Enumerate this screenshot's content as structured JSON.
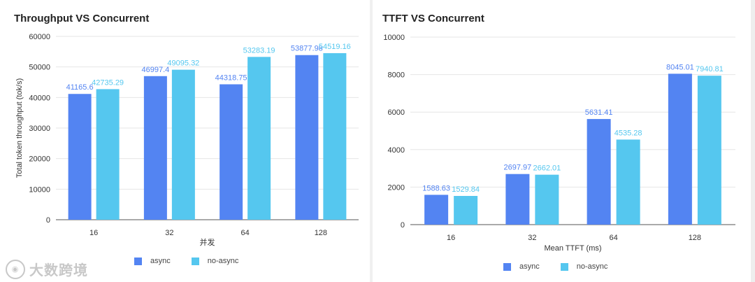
{
  "colors": {
    "async": "#5384f2",
    "no_async": "#55c7ef",
    "async_label": "#5384f2",
    "no_async_label": "#55c7ef"
  },
  "watermark": {
    "icon": "bigdata-logo-icon",
    "text": "大数跨境"
  },
  "chart_data": [
    {
      "type": "bar",
      "title": "Throughput VS Concurrent",
      "xlabel": "并发",
      "ylabel": "Total token throughput (tok/s)",
      "categories": [
        "16",
        "32",
        "64",
        "128"
      ],
      "ylim": [
        0,
        60000
      ],
      "yticks": [
        "0",
        "10000",
        "20000",
        "30000",
        "40000",
        "50000",
        "60000"
      ],
      "series": [
        {
          "name": "async",
          "values": [
            41165.6,
            46997.4,
            44318.75,
            53877.98
          ],
          "labels": [
            "41165.6",
            "46997.4",
            "44318.75",
            "53877.98"
          ]
        },
        {
          "name": "no-async",
          "values": [
            42735.29,
            49095.32,
            53283.19,
            54519.16
          ],
          "labels": [
            "42735.29",
            "49095.32",
            "53283.19",
            "54519.16"
          ]
        }
      ],
      "legend": [
        "async",
        "no-async"
      ]
    },
    {
      "type": "bar",
      "title": "TTFT VS Concurrent",
      "xlabel": "Mean TTFT (ms)",
      "ylabel": "",
      "categories": [
        "16",
        "32",
        "64",
        "128"
      ],
      "ylim": [
        0,
        10000
      ],
      "yticks": [
        "0",
        "2000",
        "4000",
        "6000",
        "8000",
        "10000"
      ],
      "series": [
        {
          "name": "async",
          "values": [
            1588.63,
            2697.97,
            5631.41,
            8045.01
          ],
          "labels": [
            "1588.63",
            "2697.97",
            "5631.41",
            "8045.01"
          ]
        },
        {
          "name": "no-async",
          "values": [
            1529.84,
            2662.01,
            4535.28,
            7940.81
          ],
          "labels": [
            "1529.84",
            "2662.01",
            "4535.28",
            "7940.81"
          ]
        }
      ],
      "legend": [
        "async",
        "no-async"
      ]
    }
  ]
}
